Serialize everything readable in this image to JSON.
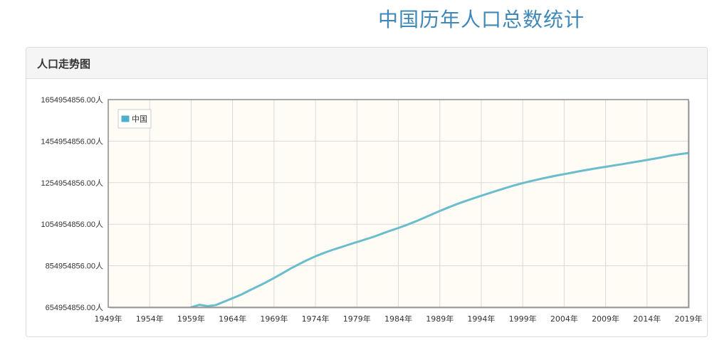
{
  "page": {
    "title": "中国历年人口总数统计"
  },
  "panel": {
    "heading": "人口走势图"
  },
  "colors": {
    "series": "#6bbdcd",
    "legend_swatch": "#4bb0c8",
    "plot_bg": "#fffcf5",
    "title": "#3f88b8"
  },
  "chart_data": {
    "type": "line",
    "title": "",
    "xlabel": "",
    "ylabel": "",
    "legend_position": "top-left",
    "grid": true,
    "xlim": [
      1949,
      2019
    ],
    "ylim": [
      654954856,
      1654954856
    ],
    "y_ticks": [
      "654954856.00人",
      "854954856.00人",
      "1054954856.00人",
      "1254954856.00人",
      "1454954856.00人",
      "1654954856.00人"
    ],
    "y_tick_values": [
      654954856,
      854954856,
      1054954856,
      1254954856,
      1454954856,
      1654954856
    ],
    "x_ticks": [
      "1949年",
      "1954年",
      "1959年",
      "1964年",
      "1969年",
      "1974年",
      "1979年",
      "1984年",
      "1989年",
      "1994年",
      "1999年",
      "2004年",
      "2009年",
      "2014年",
      "2019年"
    ],
    "x_tick_values": [
      1949,
      1954,
      1959,
      1964,
      1969,
      1974,
      1979,
      1984,
      1989,
      1994,
      1999,
      2004,
      2009,
      2014,
      2019
    ],
    "series": [
      {
        "name": "中国",
        "x": [
          1959,
          1960,
          1961,
          1962,
          1963,
          1964,
          1965,
          1966,
          1967,
          1968,
          1969,
          1970,
          1971,
          1972,
          1973,
          1974,
          1975,
          1976,
          1977,
          1978,
          1979,
          1980,
          1981,
          1982,
          1983,
          1984,
          1985,
          1986,
          1987,
          1988,
          1989,
          1990,
          1991,
          1992,
          1993,
          1994,
          1995,
          1996,
          1997,
          1998,
          1999,
          2000,
          2001,
          2002,
          2003,
          2004,
          2005,
          2006,
          2007,
          2008,
          2009,
          2010,
          2011,
          2012,
          2013,
          2014,
          2015,
          2016,
          2017,
          2018,
          2019
        ],
        "values": [
          654954856,
          667070000,
          660330000,
          665770000,
          682340000,
          698360000,
          715190000,
          735400000,
          754550000,
          774510000,
          796030000,
          818320000,
          841110000,
          862030000,
          881940000,
          900350000,
          916400000,
          930690000,
          943460000,
          956170000,
          969010000,
          981240000,
          993890000,
          1008650000,
          1023310000,
          1036690000,
          1051040000,
          1066790000,
          1084030000,
          1101630000,
          1118650000,
          1135190000,
          1150780000,
          1164970000,
          1178440000,
          1191840000,
          1204850000,
          1217550000,
          1230080000,
          1241940000,
          1252740000,
          1262650000,
          1271850000,
          1280400000,
          1288400000,
          1296080000,
          1303720000,
          1311020000,
          1317880000,
          1324650000,
          1331260000,
          1337710000,
          1344130000,
          1350700000,
          1357380000,
          1364270000,
          1371220000,
          1378660000,
          1386400000,
          1392730000,
          1397710000
        ]
      }
    ]
  }
}
